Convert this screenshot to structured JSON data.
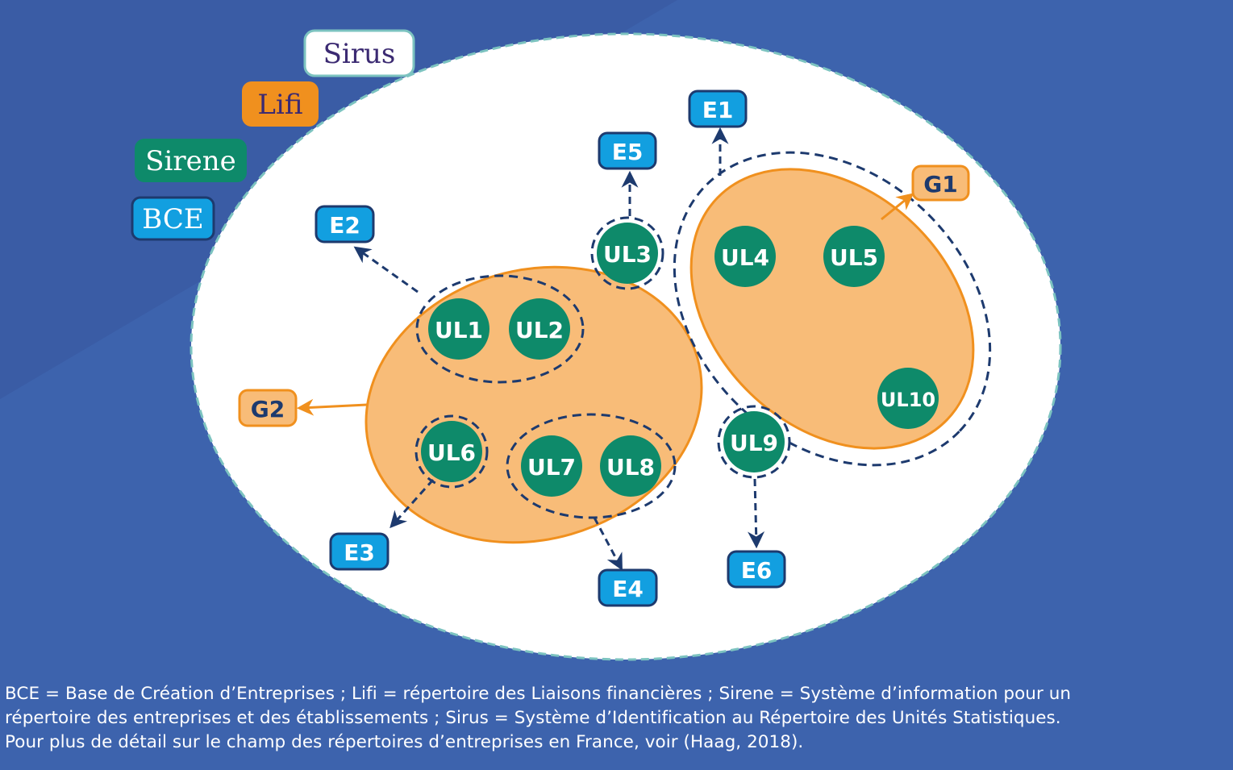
{
  "legend": {
    "sirus": "Sirus",
    "lifi": "Lifi",
    "sirene": "Sirene",
    "bce": "BCE"
  },
  "units": {
    "ul1": "UL1",
    "ul2": "UL2",
    "ul3": "UL3",
    "ul4": "UL4",
    "ul5": "UL5",
    "ul6": "UL6",
    "ul7": "UL7",
    "ul8": "UL8",
    "ul9": "UL9",
    "ul10": "UL10"
  },
  "enterprises": {
    "e1": "E1",
    "e2": "E2",
    "e3": "E3",
    "e4": "E4",
    "e5": "E5",
    "e6": "E6"
  },
  "groups": {
    "g1": "G1",
    "g2": "G2"
  },
  "footnote": {
    "line1": "BCE = Base de Création d’Entreprises ; Lifi = répertoire des Liaisons financières ; Sirene = Système d’information pour un",
    "line2": "répertoire des entreprises et des établissements ; Sirus = Système d’Identification au Répertoire des Unités Statistiques.",
    "line3": "Pour plus de détail sur le champ des répertoires d’entreprises en France, voir (Haag, 2018)."
  },
  "colors": {
    "background": "#3d63ad",
    "orange_fill": "#f8bc78",
    "orange_stroke": "#f0901e",
    "green": "#0e8a6a",
    "blue_box": "#129fe0",
    "navy": "#1d3a6e"
  }
}
